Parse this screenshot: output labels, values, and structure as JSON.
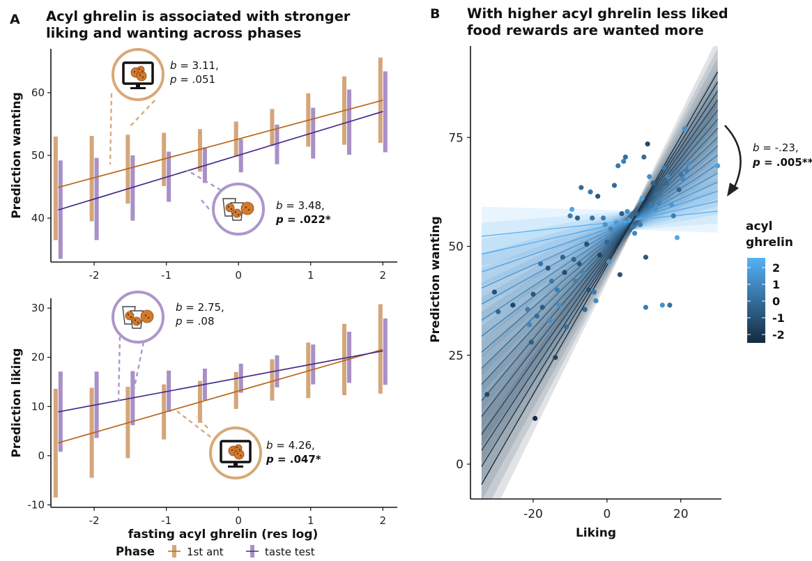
{
  "panels": {
    "a": {
      "letter": "A",
      "title_line1": "Acyl ghrelin is associated with stronger",
      "title_line2": "liking and wanting across phases"
    },
    "b": {
      "letter": "B",
      "title_line1": "With higher acyl ghrelin less liked",
      "title_line2": "food rewards are wanted more"
    }
  },
  "shared_xlabel": "fasting acyl ghrelin (res log)",
  "phase_legend": {
    "title": "Phase",
    "items": [
      {
        "label": "1st ant",
        "color": "#d4a67a"
      },
      {
        "label": "taste test",
        "color": "#a990c6"
      }
    ]
  },
  "colors": {
    "ant_bar": "#d4a67a",
    "ant_line": "#b8651a",
    "taste_bar": "#a990c6",
    "taste_line": "#4a2a8a",
    "icon_brown": "#d9a877",
    "icon_purple": "#ad96cc",
    "cookie": "#d27a2e"
  },
  "chart_data": [
    {
      "id": "a_top",
      "type": "line",
      "title": "",
      "xlabel": "",
      "ylabel": "Prediction wanting",
      "xlim": [
        -2.6,
        2.2
      ],
      "ylim": [
        33,
        67
      ],
      "xticks": [
        -2,
        -1,
        0,
        1,
        2
      ],
      "yticks": [
        40,
        50,
        60
      ],
      "series": [
        {
          "key": "ant",
          "name": "1st ant",
          "x": [
            -2.5,
            -2.0,
            -1.5,
            -1.0,
            -0.5,
            0.0,
            0.5,
            1.0,
            1.5,
            2.0
          ],
          "lo": [
            36.5,
            39.5,
            42.3,
            45.1,
            47.4,
            49.8,
            51.5,
            51.4,
            51.7,
            52.0
          ],
          "hi": [
            53.0,
            53.1,
            53.3,
            53.6,
            54.2,
            55.4,
            57.4,
            59.9,
            62.6,
            65.6
          ],
          "fit": [
            44.9,
            58.8
          ]
        },
        {
          "key": "taste",
          "name": "taste test",
          "x": [
            -2.5,
            -2.0,
            -1.5,
            -1.0,
            -0.5,
            0.0,
            0.5,
            1.0,
            1.5,
            2.0
          ],
          "lo": [
            33.5,
            36.5,
            39.6,
            42.6,
            45.6,
            47.3,
            48.6,
            49.5,
            50.1,
            50.5
          ],
          "hi": [
            49.2,
            49.6,
            50.0,
            50.6,
            51.3,
            52.6,
            54.9,
            57.6,
            60.5,
            63.4
          ],
          "fit": [
            41.3,
            57.0
          ]
        }
      ],
      "annotations": [
        {
          "icon": "screen",
          "b": "3.11,",
          "p": ".051",
          "bold": false
        },
        {
          "icon": "cups",
          "b": "3.48,",
          "p": ".022*",
          "bold": true
        }
      ]
    },
    {
      "id": "a_bottom",
      "type": "line",
      "title": "",
      "xlabel": "fasting acyl ghrelin (res log)",
      "ylabel": "Prediction liking",
      "xlim": [
        -2.6,
        2.2
      ],
      "ylim": [
        -10.5,
        32
      ],
      "xticks": [
        -2,
        -1,
        0,
        1,
        2
      ],
      "yticks": [
        -10,
        0,
        10,
        20,
        30
      ],
      "series": [
        {
          "key": "ant",
          "name": "1st ant",
          "x": [
            -2.5,
            -2.0,
            -1.5,
            -1.0,
            -0.5,
            0.0,
            0.5,
            1.0,
            1.5,
            2.0
          ],
          "lo": [
            -8.5,
            -4.5,
            -0.5,
            3.3,
            6.7,
            9.5,
            11.2,
            11.7,
            12.3,
            12.6
          ],
          "hi": [
            13.6,
            13.8,
            14.0,
            14.5,
            15.2,
            17.0,
            19.6,
            23.0,
            26.8,
            30.8
          ],
          "fit": [
            2.6,
            21.6
          ]
        },
        {
          "key": "taste",
          "name": "taste test",
          "x": [
            -2.5,
            -2.0,
            -1.5,
            -1.0,
            -0.5,
            0.0,
            0.5,
            1.0,
            1.5,
            2.0
          ],
          "lo": [
            0.8,
            3.6,
            6.2,
            8.9,
            11.3,
            12.8,
            13.9,
            14.5,
            14.8,
            14.4
          ],
          "hi": [
            17.1,
            17.1,
            17.2,
            17.3,
            17.7,
            18.7,
            20.4,
            22.6,
            25.2,
            27.9
          ],
          "fit": [
            8.9,
            21.3
          ]
        }
      ],
      "annotations": [
        {
          "icon": "cups",
          "b": "2.75,",
          "p": ".08",
          "bold": false
        },
        {
          "icon": "screen",
          "b": "4.26,",
          "p": ".047*",
          "bold": true
        }
      ]
    },
    {
      "id": "b",
      "type": "scatter",
      "title": "",
      "xlabel": "Liking",
      "ylabel": "Prediction wanting",
      "xlim": [
        -37,
        31
      ],
      "ylim": [
        -8,
        96
      ],
      "xticks": [
        -20,
        0,
        20
      ],
      "yticks": [
        0,
        25,
        50,
        75
      ],
      "pivot": [
        7.0,
        56.0
      ],
      "lines": [
        {
          "level": 2.0,
          "slope": 0.09
        },
        {
          "level": 1.7,
          "slope": 0.19
        },
        {
          "level": 1.4,
          "slope": 0.29
        },
        {
          "level": 1.1,
          "slope": 0.38
        },
        {
          "level": 0.8,
          "slope": 0.47
        },
        {
          "level": 0.5,
          "slope": 0.56
        },
        {
          "level": 0.2,
          "slope": 0.65
        },
        {
          "level": -0.1,
          "slope": 0.74
        },
        {
          "level": -0.4,
          "slope": 0.83
        },
        {
          "level": -0.7,
          "slope": 0.92
        },
        {
          "level": -1.0,
          "slope": 1.01
        },
        {
          "level": -1.3,
          "slope": 1.1
        },
        {
          "level": -1.6,
          "slope": 1.2
        },
        {
          "level": -1.9,
          "slope": 1.29
        },
        {
          "level": -2.2,
          "slope": 1.38
        },
        {
          "level": -2.5,
          "slope": 1.48
        }
      ],
      "points": [
        {
          "x": -32.5,
          "y": 16,
          "g": -1.5
        },
        {
          "x": -30.5,
          "y": 39.5,
          "g": -1.2
        },
        {
          "x": -29.5,
          "y": 35,
          "g": -0.5
        },
        {
          "x": -25.5,
          "y": 36.5,
          "g": -1.6
        },
        {
          "x": -21.5,
          "y": 35.5,
          "g": 0.2
        },
        {
          "x": -21,
          "y": 32,
          "g": 0.6
        },
        {
          "x": -20.5,
          "y": 28,
          "g": -0.8
        },
        {
          "x": -20,
          "y": 39,
          "g": -1.0
        },
        {
          "x": -19.5,
          "y": 10.5,
          "g": -2.4
        },
        {
          "x": -19,
          "y": 34,
          "g": -0.3
        },
        {
          "x": -18,
          "y": 46,
          "g": 0.0
        },
        {
          "x": -17.5,
          "y": 36,
          "g": -0.9
        },
        {
          "x": -16,
          "y": 45,
          "g": -1.1
        },
        {
          "x": -15.5,
          "y": 33,
          "g": 0.8
        },
        {
          "x": -15,
          "y": 42,
          "g": 0.0
        },
        {
          "x": -14,
          "y": 24.5,
          "g": -1.7
        },
        {
          "x": -13.5,
          "y": 40,
          "g": 0.3
        },
        {
          "x": -13,
          "y": 36.5,
          "g": 0.9
        },
        {
          "x": -12,
          "y": 47.5,
          "g": -0.6
        },
        {
          "x": -11.5,
          "y": 44,
          "g": -1.4
        },
        {
          "x": -11,
          "y": 31.5,
          "g": -0.2
        },
        {
          "x": -10,
          "y": 57,
          "g": 0.2
        },
        {
          "x": -9.5,
          "y": 58.5,
          "g": 1.6
        },
        {
          "x": -9,
          "y": 47,
          "g": -0.5
        },
        {
          "x": -8.5,
          "y": 42,
          "g": 0.4
        },
        {
          "x": -8,
          "y": 56.5,
          "g": -0.7
        },
        {
          "x": -7.5,
          "y": 46,
          "g": -0.9
        },
        {
          "x": -7,
          "y": 63.5,
          "g": -0.3
        },
        {
          "x": -6.5,
          "y": 44,
          "g": 0.6
        },
        {
          "x": -6,
          "y": 35.5,
          "g": -0.4
        },
        {
          "x": -5.5,
          "y": 50.5,
          "g": -1.3
        },
        {
          "x": -5,
          "y": 40,
          "g": -1.2
        },
        {
          "x": -4.5,
          "y": 62.5,
          "g": 0.0
        },
        {
          "x": -4,
          "y": 56.5,
          "g": -0.1
        },
        {
          "x": -3.5,
          "y": 39.5,
          "g": 0.2
        },
        {
          "x": -3,
          "y": 37.5,
          "g": 0.7
        },
        {
          "x": -2.5,
          "y": 61.5,
          "g": -1.0
        },
        {
          "x": -2,
          "y": 48,
          "g": -1.6
        },
        {
          "x": -1,
          "y": 56.5,
          "g": 0.3
        },
        {
          "x": -0.5,
          "y": 55,
          "g": 1.0
        },
        {
          "x": 0,
          "y": 51,
          "g": -0.5
        },
        {
          "x": 0.5,
          "y": 46.5,
          "g": 1.1
        },
        {
          "x": 1,
          "y": 54,
          "g": 0.5
        },
        {
          "x": 2,
          "y": 64,
          "g": -0.4
        },
        {
          "x": 2.5,
          "y": 55.5,
          "g": 1.3
        },
        {
          "x": 3,
          "y": 68.5,
          "g": 0.1
        },
        {
          "x": 3.5,
          "y": 43.5,
          "g": -1.1
        },
        {
          "x": 4,
          "y": 57.5,
          "g": -0.8
        },
        {
          "x": 4.5,
          "y": 69.5,
          "g": 0.4
        },
        {
          "x": 5,
          "y": 70.5,
          "g": -0.2
        },
        {
          "x": 5.5,
          "y": 58,
          "g": 0.9
        },
        {
          "x": 6,
          "y": 56,
          "g": 1.2
        },
        {
          "x": 7,
          "y": 54.5,
          "g": 0.0
        },
        {
          "x": 7.5,
          "y": 53,
          "g": 0.6
        },
        {
          "x": 8,
          "y": 57.5,
          "g": -0.6
        },
        {
          "x": 9,
          "y": 55,
          "g": 0.3
        },
        {
          "x": 9.5,
          "y": 61,
          "g": 1.5
        },
        {
          "x": 10,
          "y": 70.5,
          "g": -0.3
        },
        {
          "x": 10.5,
          "y": 47.5,
          "g": -0.9
        },
        {
          "x": 10.5,
          "y": 36,
          "g": 0.2
        },
        {
          "x": 11,
          "y": 73.5,
          "g": -1.4
        },
        {
          "x": 11.5,
          "y": 66,
          "g": 0.8
        },
        {
          "x": 12,
          "y": 59.5,
          "g": 0.1
        },
        {
          "x": 12.5,
          "y": 64.5,
          "g": -0.7
        },
        {
          "x": 13,
          "y": 58.5,
          "g": 1.0
        },
        {
          "x": 13.5,
          "y": 62,
          "g": -0.2
        },
        {
          "x": 14,
          "y": 60,
          "g": 0.5
        },
        {
          "x": 15,
          "y": 36.5,
          "g": 0.9
        },
        {
          "x": 15.5,
          "y": 68,
          "g": 0.2
        },
        {
          "x": 16,
          "y": 64.5,
          "g": -0.4
        },
        {
          "x": 16.5,
          "y": 66,
          "g": 0.6
        },
        {
          "x": 17,
          "y": 36.5,
          "g": -0.1
        },
        {
          "x": 17.5,
          "y": 59.5,
          "g": 1.2
        },
        {
          "x": 18,
          "y": 57,
          "g": 0.3
        },
        {
          "x": 19,
          "y": 52,
          "g": 1.7
        },
        {
          "x": 19.5,
          "y": 63,
          "g": -0.5
        },
        {
          "x": 20,
          "y": 66.5,
          "g": 0.0
        },
        {
          "x": 20.5,
          "y": 65.5,
          "g": 0.7
        },
        {
          "x": 21,
          "y": 77,
          "g": 1.0
        },
        {
          "x": 21.5,
          "y": 67.5,
          "g": 0.4
        },
        {
          "x": 22,
          "y": 69,
          "g": 0.9
        },
        {
          "x": 30,
          "y": 68.5,
          "g": 1.4
        }
      ],
      "annotation": {
        "b": "-.23,",
        "p": ".005**"
      },
      "colorbar": {
        "title_line1": "acyl",
        "title_line2": "ghrelin",
        "ticks": [
          "2",
          "1",
          "0",
          "-1",
          "-2"
        ],
        "low_color": "#142a3f",
        "high_color": "#56b1f7"
      }
    }
  ]
}
